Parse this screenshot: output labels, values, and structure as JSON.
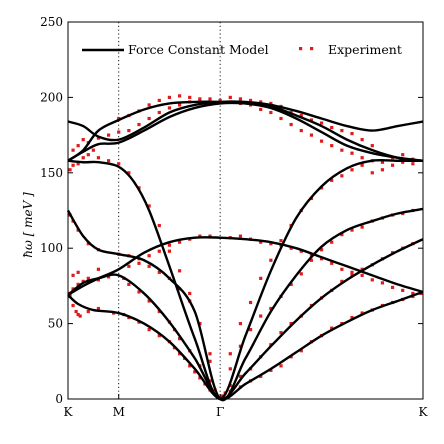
{
  "chart_data": {
    "type": "line",
    "ylabel": "ħω [ meV ]",
    "ylim": [
      0,
      250
    ],
    "y_ticks": [
      0,
      50,
      100,
      150,
      200,
      250
    ],
    "x_ticks": [
      {
        "label": "K",
        "pos": 0
      },
      {
        "label": "M",
        "pos": 0.5
      },
      {
        "label": "Γ",
        "pos": 1.5
      },
      {
        "label": "K",
        "pos": 3.5
      }
    ],
    "xlim": [
      0,
      3.5
    ],
    "vertical_lines_at": [
      0.5,
      1.5
    ],
    "legend": {
      "placement": "top",
      "model_label": "Force Constant Model",
      "experiment_label": "Experiment"
    },
    "colors": {
      "model": "#000000",
      "experiment": "#e01b1b"
    },
    "series": [
      {
        "kind": "model",
        "x": [
          0,
          0.1,
          0.25,
          0.5,
          0.75,
          1.0,
          1.25,
          1.5,
          1.75,
          2.0,
          2.25,
          2.5,
          2.75,
          3.0,
          3.25,
          3.5
        ],
        "values": [
          69,
          63,
          59,
          57,
          50,
          38,
          20,
          0,
          10,
          20,
          31,
          42,
          51,
          59,
          65,
          71
        ]
      },
      {
        "kind": "model",
        "x": [
          0,
          0.15,
          0.3,
          0.5,
          0.75,
          1.0,
          1.25,
          1.5,
          1.75,
          2.0,
          2.25,
          2.5,
          2.75,
          3.0,
          3.25,
          3.5
        ],
        "values": [
          69,
          77,
          80,
          82,
          70,
          51,
          27,
          0,
          17,
          35,
          52,
          67,
          79,
          89,
          98,
          106
        ]
      },
      {
        "kind": "model",
        "x": [
          0,
          0.15,
          0.3,
          0.5,
          0.75,
          1.0,
          1.25,
          1.5,
          1.75,
          2.0,
          2.25,
          2.5,
          2.75,
          3.0,
          3.25,
          3.5
        ],
        "values": [
          125,
          108,
          99,
          96,
          92,
          80,
          58,
          0,
          27,
          58,
          82,
          101,
          112,
          118,
          123,
          126
        ]
      },
      {
        "kind": "model",
        "x": [
          0,
          0.15,
          0.3,
          0.5,
          0.75,
          1.0,
          1.25,
          1.5,
          1.75,
          2.0,
          2.25,
          2.5,
          2.75,
          3.0,
          3.25,
          3.5
        ],
        "values": [
          69,
          75,
          80,
          86,
          97,
          104,
          107,
          107,
          106,
          104,
          100,
          94,
          88,
          82,
          76,
          71
        ]
      },
      {
        "kind": "model",
        "x": [
          0,
          0.15,
          0.3,
          0.5,
          0.65,
          0.8,
          1.0,
          1.25,
          1.5,
          1.75,
          2.0,
          2.25,
          2.5,
          2.75,
          3.0,
          3.25,
          3.5
        ],
        "values": [
          158,
          157,
          157,
          154,
          144,
          125,
          88,
          40,
          0,
          42,
          85,
          120,
          141,
          153,
          158,
          158,
          158
        ]
      },
      {
        "kind": "model",
        "x": [
          0,
          0.15,
          0.3,
          0.5,
          0.75,
          1.0,
          1.25,
          1.5,
          1.75,
          2.0,
          2.25,
          2.5,
          2.75,
          3.0,
          3.25,
          3.5
        ],
        "values": [
          158,
          164,
          169,
          170,
          178,
          187,
          193,
          196,
          196,
          194,
          188,
          181,
          172,
          165,
          160,
          158
        ]
      },
      {
        "kind": "model",
        "x": [
          0,
          0.15,
          0.3,
          0.5,
          0.75,
          1.0,
          1.25,
          1.5,
          1.75,
          2.0,
          2.25,
          2.5,
          2.75,
          3.0,
          3.25,
          3.5
        ],
        "values": [
          184,
          181,
          174,
          172,
          180,
          190,
          195,
          197,
          197,
          195,
          191,
          186,
          181,
          178,
          181,
          184
        ]
      },
      {
        "kind": "model",
        "x": [
          0,
          0.15,
          0.3,
          0.5,
          0.75,
          1.0,
          1.25,
          1.5,
          1.75,
          2.0,
          2.25,
          2.5,
          2.75,
          3.0,
          3.25,
          3.5
        ],
        "values": [
          158,
          165,
          178,
          185,
          192,
          196,
          197,
          197,
          196,
          193,
          186,
          177,
          168,
          163,
          160,
          158
        ]
      }
    ],
    "experiment_points": [
      [
        0.02,
        68
      ],
      [
        0.05,
        62
      ],
      [
        0.08,
        58
      ],
      [
        0.1,
        56
      ],
      [
        0.12,
        55
      ],
      [
        0.2,
        58
      ],
      [
        0.3,
        60
      ],
      [
        0.45,
        57
      ],
      [
        0.55,
        56
      ],
      [
        0.6,
        54
      ],
      [
        0.7,
        51
      ],
      [
        0.8,
        46
      ],
      [
        0.9,
        42
      ],
      [
        1.0,
        38
      ],
      [
        1.05,
        34
      ],
      [
        1.1,
        30
      ],
      [
        1.15,
        27
      ],
      [
        1.2,
        22
      ],
      [
        1.25,
        18
      ],
      [
        1.3,
        14
      ],
      [
        1.35,
        10
      ],
      [
        1.4,
        6
      ],
      [
        1.45,
        3
      ],
      [
        1.52,
        2
      ],
      [
        1.55,
        4
      ],
      [
        1.6,
        5
      ],
      [
        1.7,
        8
      ],
      [
        1.8,
        12
      ],
      [
        1.9,
        15
      ],
      [
        2.0,
        19
      ],
      [
        2.1,
        22
      ],
      [
        2.2,
        28
      ],
      [
        2.3,
        32
      ],
      [
        2.4,
        38
      ],
      [
        2.5,
        42
      ],
      [
        2.6,
        47
      ],
      [
        2.7,
        50
      ],
      [
        2.8,
        54
      ],
      [
        2.9,
        57
      ],
      [
        3.0,
        59
      ],
      [
        3.1,
        62
      ],
      [
        3.2,
        64
      ],
      [
        3.3,
        66
      ],
      [
        3.4,
        68
      ],
      [
        3.48,
        70
      ],
      [
        0.02,
        70
      ],
      [
        0.05,
        73
      ],
      [
        0.1,
        76
      ],
      [
        0.15,
        78
      ],
      [
        0.2,
        80
      ],
      [
        0.3,
        79
      ],
      [
        0.4,
        81
      ],
      [
        0.55,
        80
      ],
      [
        0.6,
        76
      ],
      [
        0.7,
        71
      ],
      [
        0.8,
        65
      ],
      [
        0.9,
        58
      ],
      [
        1.0,
        51
      ],
      [
        1.05,
        46
      ],
      [
        1.1,
        40
      ],
      [
        1.2,
        32
      ],
      [
        1.3,
        22
      ],
      [
        1.4,
        12
      ],
      [
        1.45,
        6
      ],
      [
        1.6,
        9
      ],
      [
        1.7,
        15
      ],
      [
        1.8,
        20
      ],
      [
        1.9,
        28
      ],
      [
        2.0,
        36
      ],
      [
        2.1,
        44
      ],
      [
        2.2,
        50
      ],
      [
        2.3,
        55
      ],
      [
        2.4,
        62
      ],
      [
        2.5,
        67
      ],
      [
        2.6,
        72
      ],
      [
        2.7,
        78
      ],
      [
        2.8,
        82
      ],
      [
        2.9,
        86
      ],
      [
        3.0,
        89
      ],
      [
        3.1,
        93
      ],
      [
        3.2,
        97
      ],
      [
        3.3,
        100
      ],
      [
        3.4,
        103
      ],
      [
        0.02,
        122
      ],
      [
        0.05,
        118
      ],
      [
        0.1,
        112
      ],
      [
        0.2,
        103
      ],
      [
        0.3,
        99
      ],
      [
        0.5,
        96
      ],
      [
        0.6,
        95
      ],
      [
        0.7,
        93
      ],
      [
        0.8,
        88
      ],
      [
        0.9,
        84
      ],
      [
        1.0,
        80
      ],
      [
        1.1,
        73
      ],
      [
        1.2,
        65
      ],
      [
        1.3,
        50
      ],
      [
        1.4,
        30
      ],
      [
        1.6,
        20
      ],
      [
        1.7,
        35
      ],
      [
        1.8,
        46
      ],
      [
        1.9,
        55
      ],
      [
        2.0,
        60
      ],
      [
        2.1,
        68
      ],
      [
        2.2,
        76
      ],
      [
        2.3,
        83
      ],
      [
        2.4,
        92
      ],
      [
        2.5,
        99
      ],
      [
        2.6,
        104
      ],
      [
        2.7,
        109
      ],
      [
        2.8,
        112
      ],
      [
        2.9,
        114
      ],
      [
        3.0,
        118
      ],
      [
        3.1,
        120
      ],
      [
        3.2,
        122
      ],
      [
        3.3,
        123
      ],
      [
        3.4,
        125
      ],
      [
        0.05,
        82
      ],
      [
        0.1,
        84
      ],
      [
        0.3,
        86
      ],
      [
        0.6,
        88
      ],
      [
        0.7,
        90
      ],
      [
        0.8,
        95
      ],
      [
        0.9,
        98
      ],
      [
        1.0,
        102
      ],
      [
        1.1,
        104
      ],
      [
        1.2,
        106
      ],
      [
        1.3,
        108
      ],
      [
        1.4,
        108
      ],
      [
        1.6,
        107
      ],
      [
        1.7,
        108
      ],
      [
        1.8,
        106
      ],
      [
        1.9,
        104
      ],
      [
        2.0,
        103
      ],
      [
        2.1,
        102
      ],
      [
        2.2,
        100
      ],
      [
        2.3,
        98
      ],
      [
        2.4,
        95
      ],
      [
        2.5,
        93
      ],
      [
        2.6,
        90
      ],
      [
        2.7,
        86
      ],
      [
        2.8,
        84
      ],
      [
        2.9,
        82
      ],
      [
        3.0,
        79
      ],
      [
        3.1,
        77
      ],
      [
        3.2,
        74
      ],
      [
        3.3,
        72
      ],
      [
        3.4,
        70
      ],
      [
        0.02,
        152
      ],
      [
        0.05,
        155
      ],
      [
        0.1,
        156
      ],
      [
        0.15,
        160
      ],
      [
        0.2,
        162
      ],
      [
        0.25,
        165
      ],
      [
        0.3,
        160
      ],
      [
        0.4,
        158
      ],
      [
        0.5,
        156
      ],
      [
        0.6,
        150
      ],
      [
        0.7,
        140
      ],
      [
        0.8,
        128
      ],
      [
        0.9,
        115
      ],
      [
        1.0,
        98
      ],
      [
        1.1,
        85
      ],
      [
        1.2,
        70
      ],
      [
        1.3,
        50
      ],
      [
        1.4,
        25
      ],
      [
        1.6,
        30
      ],
      [
        1.7,
        50
      ],
      [
        1.8,
        64
      ],
      [
        1.9,
        80
      ],
      [
        2.0,
        92
      ],
      [
        2.1,
        105
      ],
      [
        2.2,
        115
      ],
      [
        2.3,
        125
      ],
      [
        2.4,
        133
      ],
      [
        2.5,
        140
      ],
      [
        2.6,
        145
      ],
      [
        2.7,
        148
      ],
      [
        2.8,
        152
      ],
      [
        2.9,
        155
      ],
      [
        3.0,
        150
      ],
      [
        3.1,
        152
      ],
      [
        3.2,
        155
      ],
      [
        3.3,
        157
      ],
      [
        3.4,
        156
      ],
      [
        0.05,
        165
      ],
      [
        0.1,
        168
      ],
      [
        0.15,
        172
      ],
      [
        0.2,
        170
      ],
      [
        0.3,
        173
      ],
      [
        0.4,
        175
      ],
      [
        0.5,
        177
      ],
      [
        0.6,
        178
      ],
      [
        0.7,
        182
      ],
      [
        0.8,
        186
      ],
      [
        0.9,
        190
      ],
      [
        1.0,
        193
      ],
      [
        1.1,
        195
      ],
      [
        1.2,
        197
      ],
      [
        1.3,
        198
      ],
      [
        1.4,
        199
      ],
      [
        1.5,
        198
      ],
      [
        1.6,
        197
      ],
      [
        1.7,
        196
      ],
      [
        1.8,
        195
      ],
      [
        1.9,
        192
      ],
      [
        2.0,
        190
      ],
      [
        2.1,
        186
      ],
      [
        2.2,
        182
      ],
      [
        2.3,
        178
      ],
      [
        2.4,
        175
      ],
      [
        2.5,
        171
      ],
      [
        2.6,
        168
      ],
      [
        2.7,
        165
      ],
      [
        2.8,
        163
      ],
      [
        2.9,
        160
      ],
      [
        3.0,
        158
      ],
      [
        3.1,
        157
      ],
      [
        3.2,
        160
      ],
      [
        3.3,
        162
      ],
      [
        3.4,
        159
      ],
      [
        0.5,
        186
      ],
      [
        0.6,
        188
      ],
      [
        0.7,
        191
      ],
      [
        0.8,
        195
      ],
      [
        0.9,
        198
      ],
      [
        1.0,
        200
      ],
      [
        1.1,
        201
      ],
      [
        1.2,
        200
      ],
      [
        1.3,
        199
      ],
      [
        1.6,
        200
      ],
      [
        1.7,
        199
      ],
      [
        1.8,
        198
      ],
      [
        1.9,
        197
      ],
      [
        2.0,
        196
      ],
      [
        2.1,
        194
      ],
      [
        2.2,
        190
      ],
      [
        2.3,
        188
      ],
      [
        2.4,
        185
      ],
      [
        2.5,
        183
      ],
      [
        2.6,
        180
      ],
      [
        2.7,
        178
      ],
      [
        2.8,
        176
      ],
      [
        2.9,
        172
      ],
      [
        3.0,
        168
      ]
    ]
  }
}
